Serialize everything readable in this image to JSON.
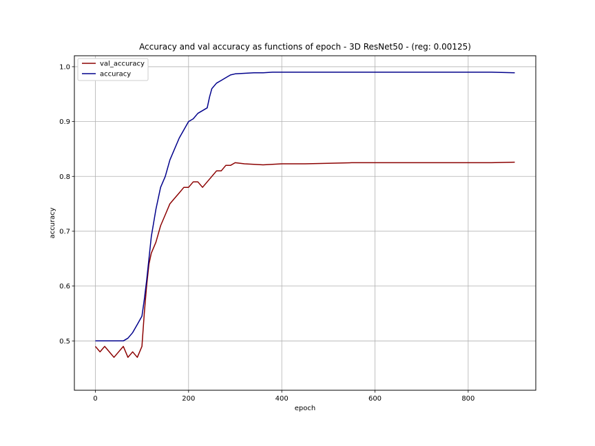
{
  "chart_data": {
    "type": "line",
    "title": "Accuracy and val accuracy as functions of epoch - 3D ResNet50 - (reg: 0.00125)",
    "xlabel": "epoch",
    "ylabel": "accuracy",
    "xlim": [
      -45,
      945
    ],
    "ylim": [
      0.41,
      1.02
    ],
    "xticks": [
      0,
      200,
      400,
      600,
      800
    ],
    "yticks": [
      0.5,
      0.6,
      0.7,
      0.8,
      0.9,
      1.0
    ],
    "xtick_labels": [
      "0",
      "200",
      "400",
      "600",
      "800"
    ],
    "ytick_labels": [
      "0.5",
      "0.6",
      "0.7",
      "0.8",
      "0.9",
      "1.0"
    ],
    "grid": true,
    "legend_position": "upper-left",
    "series": [
      {
        "name": "val_accuracy",
        "color": "#8b0000",
        "x": [
          0,
          10,
          20,
          30,
          40,
          50,
          60,
          70,
          80,
          90,
          100,
          105,
          110,
          115,
          120,
          130,
          140,
          150,
          160,
          170,
          180,
          190,
          200,
          210,
          220,
          230,
          240,
          250,
          260,
          270,
          280,
          290,
          300,
          320,
          340,
          360,
          380,
          400,
          450,
          500,
          550,
          600,
          650,
          700,
          750,
          800,
          850,
          900
        ],
        "y": [
          0.49,
          0.48,
          0.49,
          0.48,
          0.47,
          0.48,
          0.49,
          0.47,
          0.48,
          0.47,
          0.49,
          0.55,
          0.6,
          0.64,
          0.66,
          0.68,
          0.71,
          0.73,
          0.75,
          0.76,
          0.77,
          0.78,
          0.78,
          0.79,
          0.79,
          0.78,
          0.79,
          0.8,
          0.81,
          0.81,
          0.82,
          0.82,
          0.825,
          0.823,
          0.822,
          0.821,
          0.822,
          0.823,
          0.823,
          0.824,
          0.825,
          0.825,
          0.825,
          0.825,
          0.825,
          0.825,
          0.825,
          0.826
        ]
      },
      {
        "name": "accuracy",
        "color": "#00008b",
        "x": [
          0,
          10,
          20,
          30,
          40,
          50,
          60,
          70,
          80,
          90,
          100,
          105,
          110,
          115,
          120,
          130,
          140,
          150,
          160,
          170,
          180,
          190,
          200,
          210,
          220,
          230,
          240,
          245,
          250,
          260,
          270,
          280,
          290,
          300,
          320,
          340,
          360,
          380,
          400,
          450,
          500,
          550,
          600,
          650,
          700,
          750,
          800,
          850,
          900
        ],
        "y": [
          0.5,
          0.5,
          0.5,
          0.5,
          0.5,
          0.5,
          0.5,
          0.505,
          0.515,
          0.53,
          0.545,
          0.575,
          0.61,
          0.65,
          0.69,
          0.74,
          0.78,
          0.8,
          0.83,
          0.85,
          0.87,
          0.885,
          0.9,
          0.905,
          0.915,
          0.92,
          0.925,
          0.945,
          0.96,
          0.97,
          0.975,
          0.98,
          0.985,
          0.987,
          0.988,
          0.989,
          0.989,
          0.99,
          0.99,
          0.99,
          0.99,
          0.99,
          0.99,
          0.99,
          0.99,
          0.99,
          0.99,
          0.99,
          0.989
        ]
      }
    ]
  }
}
